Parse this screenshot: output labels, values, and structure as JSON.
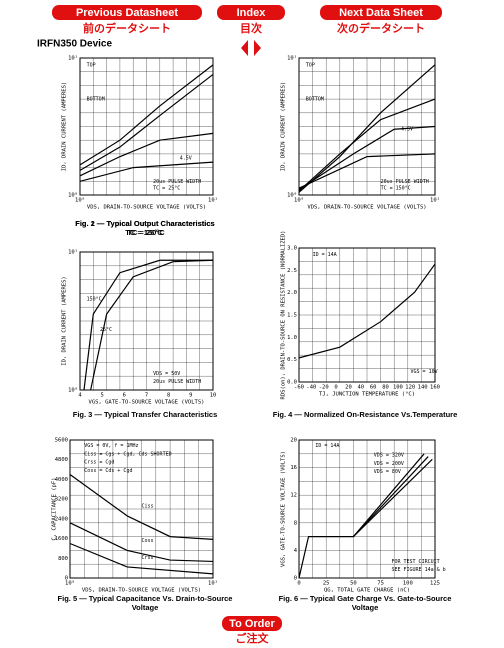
{
  "nav": {
    "previous": "Previous Datasheet",
    "previous_jp": "前のデータシート",
    "index": "Index",
    "index_jp": "目次",
    "next": "Next Data Sheet",
    "next_jp": "次のデータシート",
    "order": "To Order",
    "order_jp": "ご注文"
  },
  "device": "IRFN350 Device",
  "figures": [
    {
      "caption": [
        "Fig. 1 — Typical Output Characteristics",
        "TC = 25°C"
      ],
      "x_label": "VDS, DRAIN-TO-SOURCE VOLTAGE (VOLTS)",
      "y_label": "ID, DRAIN CURRENT (AMPERES)",
      "xticks": [
        "10⁰",
        "10¹"
      ],
      "yticks": [
        "10⁰",
        "10¹"
      ],
      "annotations": [
        "TOP",
        "BOTTOM",
        "4.5V",
        "20us PULSE WIDTH",
        "TC = 25°C"
      ]
    },
    {
      "caption": [
        "Fig. 2 — Typical Output Characteristics",
        "TC = 150°C"
      ],
      "x_label": "VDS, DRAIN-TO-SOURCE VOLTAGE (VOLTS)",
      "y_label": "ID, DRAIN CURRENT (AMPERES)",
      "xticks": [
        "10⁰",
        "10¹"
      ],
      "yticks": [
        "10⁰",
        "10¹"
      ],
      "annotations": [
        "TOP",
        "BOTTOM",
        "4.5V",
        "20us PULSE WIDTH",
        "TC = 150°C"
      ]
    },
    {
      "caption": [
        "Fig. 3 — Typical Transfer Characteristics"
      ],
      "x_label": "VGS, GATE-TO-SOURCE VOLTAGE (VOLTS)",
      "y_label": "ID, DRAIN CURRENT (AMPERES)",
      "xticks": [
        4,
        5,
        6,
        7,
        8,
        9,
        10
      ],
      "yticks": [
        "10⁰",
        "10¹"
      ],
      "annotations": [
        "150°C",
        "25°C",
        "VDS = 50V",
        "20us PULSE WIDTH"
      ]
    },
    {
      "caption": [
        "Fig. 4 — Normalized On-Resistance Vs.Temperature"
      ],
      "x_label": "TJ, JUNCTION TEMPERATURE (°C)",
      "y_label": "RDS(on), DRAIN-TO-SOURCE ON RESISTANCE (NORMALIZED)",
      "xticks": [
        -60,
        -40,
        -20,
        0,
        20,
        40,
        60,
        80,
        100,
        120,
        140,
        160
      ],
      "yticks": [
        "0.0",
        "0.5",
        "1.0",
        "1.5",
        "2.0",
        "2.5",
        "3.0"
      ],
      "annotations": [
        "ID = 14A",
        "VGS = 10V"
      ]
    },
    {
      "caption": [
        "Fig. 5 — Typical Capacitance Vs. Drain-to-Source",
        "Voltage"
      ],
      "x_label": "VDS, DRAIN-TO-SOURCE VOLTAGE (VOLTS)",
      "y_label": "C, CAPACITANCE (pF)",
      "xticks": [
        "10⁰",
        "10¹"
      ],
      "yticks": [
        0,
        800,
        1600,
        2400,
        3200,
        4000,
        4800,
        5600
      ],
      "annotations": [
        "VGS = 0V, f = 1MHz",
        "Ciss = Cgs + Cgd, Cds SHORTED",
        "Crss = Cgd",
        "Coss = Cds + Cgd",
        "Ciss",
        "Coss",
        "Crss"
      ]
    },
    {
      "caption": [
        "Fig. 6 — Typical Gate Charge Vs. Gate-to-Source",
        "Voltage"
      ],
      "x_label": "QG, TOTAL GATE CHARGE (nC)",
      "y_label": "VGS, GATE-TO-SOURCE VOLTAGE (VOLTS)",
      "xticks": [
        0,
        25,
        50,
        75,
        100,
        125
      ],
      "yticks": [
        0,
        4,
        8,
        12,
        16,
        20
      ],
      "annotations": [
        "ID = 14A",
        "VDS = 320V",
        "VDS = 200V",
        "VDS = 80V",
        "FOR TEST CIRCUIT",
        "SEE FIGURE 14a & b"
      ]
    }
  ]
}
